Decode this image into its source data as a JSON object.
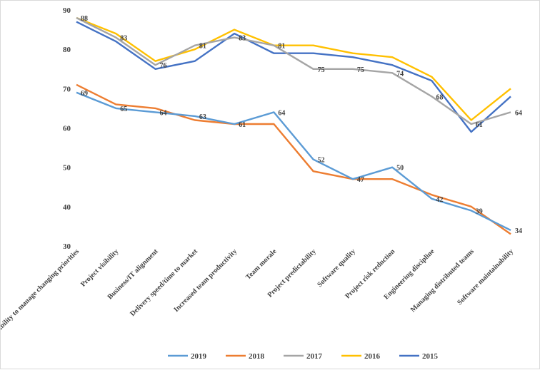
{
  "chart_data": {
    "type": "line",
    "title": "",
    "xlabel": "",
    "ylabel": "",
    "ylim": [
      30,
      90
    ],
    "yticks": [
      30,
      40,
      50,
      60,
      70,
      80,
      90
    ],
    "grid": false,
    "legend_position": "bottom",
    "categories": [
      "Ability to manage changing priorities",
      "Project visibility",
      "Business/IT alignment",
      "Delivery speed/time to market",
      "Increased team productivity",
      "Team morale",
      "Project predictability",
      "Software quality",
      "Project risk reduction",
      "Engineering discipline",
      "Managing distributed teams",
      "Software maintainability"
    ],
    "series": [
      {
        "name": "2019",
        "color": "#5B9BD5",
        "values": [
          69,
          65,
          64,
          63,
          61,
          64,
          52,
          47,
          50,
          42,
          39,
          34
        ]
      },
      {
        "name": "2018",
        "color": "#ED7D31",
        "values": [
          71,
          66,
          65,
          62,
          61,
          61,
          49,
          47,
          47,
          43,
          40,
          33
        ]
      },
      {
        "name": "2017",
        "color": "#A5A5A5",
        "values": [
          88,
          83,
          76,
          81,
          83,
          81,
          75,
          75,
          74,
          68,
          61,
          64
        ]
      },
      {
        "name": "2016",
        "color": "#FFC000",
        "values": [
          88,
          84,
          77,
          80,
          85,
          81,
          81,
          79,
          78,
          73,
          62,
          70
        ]
      },
      {
        "name": "2015",
        "color": "#4472C4",
        "values": [
          87,
          82,
          75,
          77,
          84,
          79,
          79,
          78,
          76,
          72,
          59,
          68
        ]
      }
    ],
    "data_labels": [
      {
        "category": 0,
        "value": 88,
        "text": "88"
      },
      {
        "category": 1,
        "value": 83,
        "text": "83"
      },
      {
        "category": 2,
        "value": 76,
        "text": "76"
      },
      {
        "category": 3,
        "value": 81,
        "text": "81"
      },
      {
        "category": 4,
        "value": 83,
        "text": "83"
      },
      {
        "category": 5,
        "value": 81,
        "text": "81"
      },
      {
        "category": 6,
        "value": 75,
        "text": "75"
      },
      {
        "category": 7,
        "value": 75,
        "text": "75"
      },
      {
        "category": 8,
        "value": 74,
        "text": "74"
      },
      {
        "category": 9,
        "value": 68,
        "text": "68"
      },
      {
        "category": 10,
        "value": 61,
        "text": "61"
      },
      {
        "category": 11,
        "value": 64,
        "text": "64"
      },
      {
        "category": 0,
        "value": 69,
        "text": "69"
      },
      {
        "category": 1,
        "value": 65,
        "text": "65"
      },
      {
        "category": 2,
        "value": 64,
        "text": "64"
      },
      {
        "category": 3,
        "value": 63,
        "text": "63"
      },
      {
        "category": 4,
        "value": 61,
        "text": "61"
      },
      {
        "category": 5,
        "value": 64,
        "text": "64"
      },
      {
        "category": 6,
        "value": 52,
        "text": "52"
      },
      {
        "category": 7,
        "value": 47,
        "text": "47"
      },
      {
        "category": 8,
        "value": 50,
        "text": "50"
      },
      {
        "category": 9,
        "value": 42,
        "text": "42"
      },
      {
        "category": 10,
        "value": 39,
        "text": "39"
      },
      {
        "category": 11,
        "value": 34,
        "text": "34"
      }
    ]
  }
}
